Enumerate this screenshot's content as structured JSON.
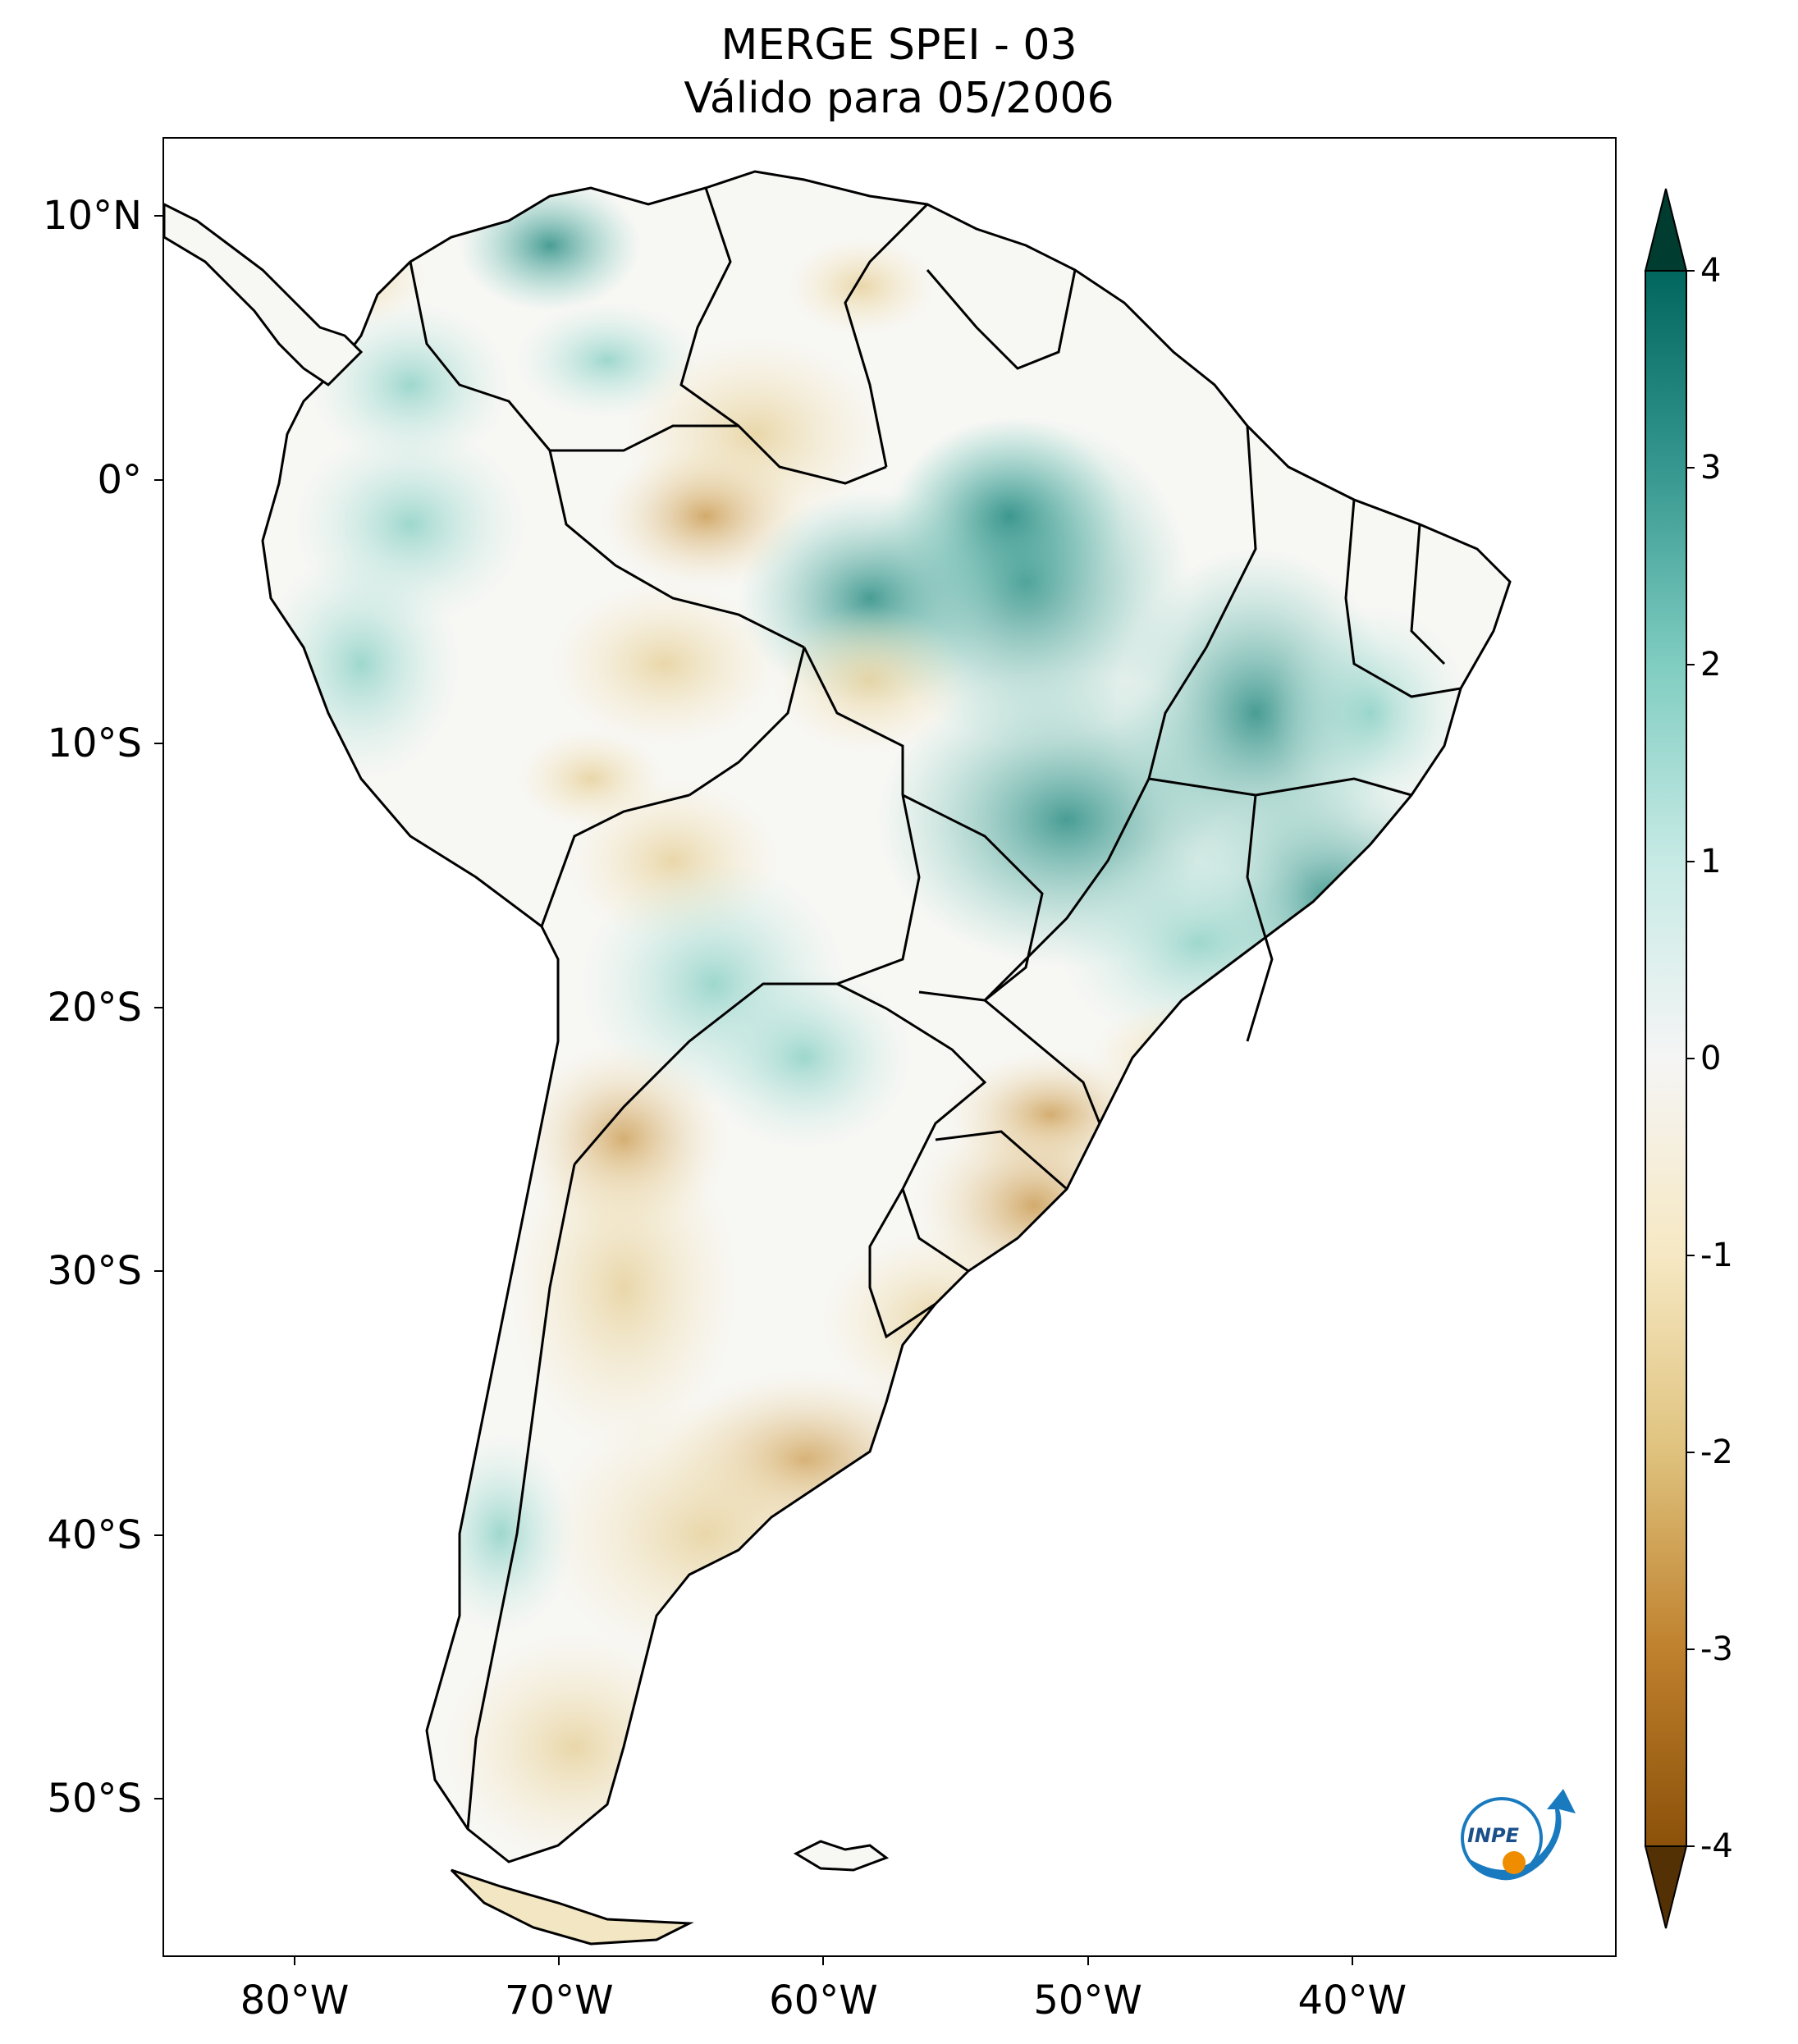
{
  "title": {
    "line1": "MERGE   SPEI - 03",
    "line2": "Válido para 05/2006"
  },
  "map": {
    "region": "South America",
    "variable": "SPEI - 03",
    "y_ticks": [
      {
        "label": "10°N",
        "lat": 10
      },
      {
        "label": "0°",
        "lat": 0
      },
      {
        "label": "10°S",
        "lat": -10
      },
      {
        "label": "20°S",
        "lat": -20
      },
      {
        "label": "30°S",
        "lat": -30
      },
      {
        "label": "40°S",
        "lat": -40
      },
      {
        "label": "50°S",
        "lat": -50
      }
    ],
    "x_ticks": [
      {
        "label": "80°W",
        "lon": -80
      },
      {
        "label": "70°W",
        "lon": -70
      },
      {
        "label": "60°W",
        "lon": -60
      },
      {
        "label": "50°W",
        "lon": -50
      },
      {
        "label": "40°W",
        "lon": -40
      }
    ],
    "lon_range": [
      -85,
      -30
    ],
    "lat_range": [
      -56,
      13
    ],
    "wet_color": "#35978f",
    "dry_color": "#bf812d",
    "border_color": "#000000"
  },
  "colorbar": {
    "min": -4,
    "max": 4,
    "extend": "both",
    "ticks": [
      "4",
      "3",
      "2",
      "1",
      "0",
      "-1",
      "-2",
      "-3",
      "-4"
    ],
    "colors_top_to_bottom": [
      "#003c30",
      "#01665e",
      "#35978f",
      "#80cdc1",
      "#c7eae5",
      "#f5f5f5",
      "#f6e8c3",
      "#dfc27d",
      "#bf812d",
      "#8c510a",
      "#543005"
    ]
  },
  "logo": {
    "text": "INPE",
    "colors": [
      "#1a7abf",
      "#f08c00"
    ]
  }
}
